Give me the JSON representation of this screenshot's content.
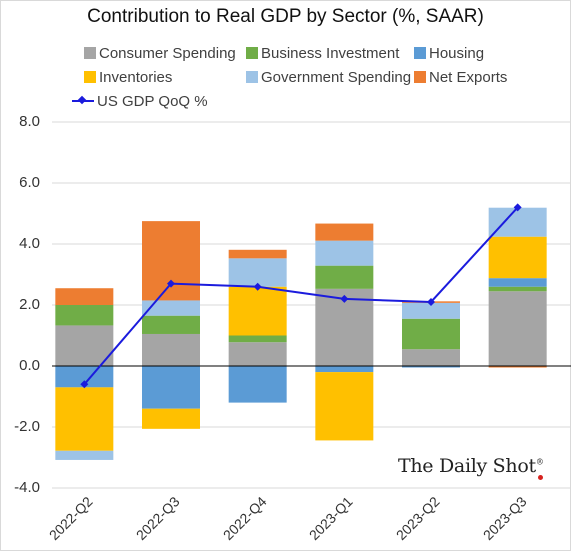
{
  "chart_data": {
    "type": "bar",
    "title": "Contribution to Real GDP by Sector (%, SAAR)",
    "categories": [
      "2022-Q2",
      "2022-Q3",
      "2022-Q4",
      "2023-Q1",
      "2023-Q2",
      "2023-Q3"
    ],
    "ylim": [
      -4.0,
      8.0
    ],
    "yticks": [
      "-4.0",
      "-2.0",
      "0.0",
      "2.0",
      "4.0",
      "6.0",
      "8.0"
    ],
    "grid": true,
    "legend_position": "top",
    "series": [
      {
        "name": "Consumer Spending",
        "color": "#a5a5a5",
        "values": [
          1.33,
          1.05,
          0.78,
          2.53,
          0.55,
          2.45
        ]
      },
      {
        "name": "Business Investment",
        "color": "#70ad47",
        "values": [
          0.67,
          0.6,
          0.22,
          0.76,
          1.0,
          0.15
        ]
      },
      {
        "name": "Housing",
        "color": "#5b9bd5",
        "values": [
          -0.7,
          -1.4,
          -1.2,
          -0.2,
          -0.05,
          0.28
        ]
      },
      {
        "name": "Inventories",
        "color": "#ffc000",
        "values": [
          -2.08,
          -0.66,
          1.6,
          -2.24,
          0.0,
          1.36
        ]
      },
      {
        "name": "Government Spending",
        "color": "#9dc3e6",
        "values": [
          -0.3,
          0.5,
          0.93,
          0.82,
          0.52,
          0.95
        ]
      },
      {
        "name": "Net Exports",
        "color": "#ed7d31",
        "values": [
          0.55,
          2.6,
          0.28,
          0.56,
          0.05,
          -0.05
        ]
      }
    ],
    "line": {
      "name": "US GDP QoQ %",
      "color": "#1b1bdd",
      "values": [
        -0.6,
        2.7,
        2.6,
        2.2,
        2.1,
        5.2
      ]
    }
  },
  "watermark": "The Daily Shot",
  "watermark_mark": "®"
}
